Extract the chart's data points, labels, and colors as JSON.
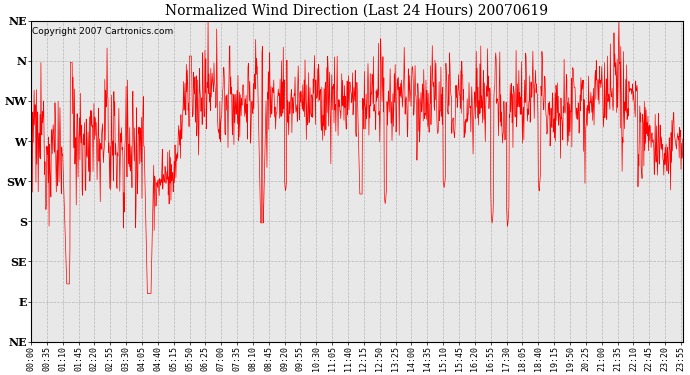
{
  "title": "Normalized Wind Direction (Last 24 Hours) 20070619",
  "copyright": "Copyright 2007 Cartronics.com",
  "y_labels": [
    "NE",
    "E",
    "SE",
    "S",
    "SW",
    "W",
    "NW",
    "N",
    "NE"
  ],
  "y_ticks": [
    0,
    0.125,
    0.25,
    0.375,
    0.5,
    0.625,
    0.75,
    0.875,
    1.0
  ],
  "line_color": "#ff0000",
  "bg_color": "#e8e8e8",
  "plot_bg_color": "#ffffff",
  "grid_color": "#aaaaaa",
  "title_fontsize": 10,
  "copyright_fontsize": 6.5,
  "tick_fontsize": 6
}
